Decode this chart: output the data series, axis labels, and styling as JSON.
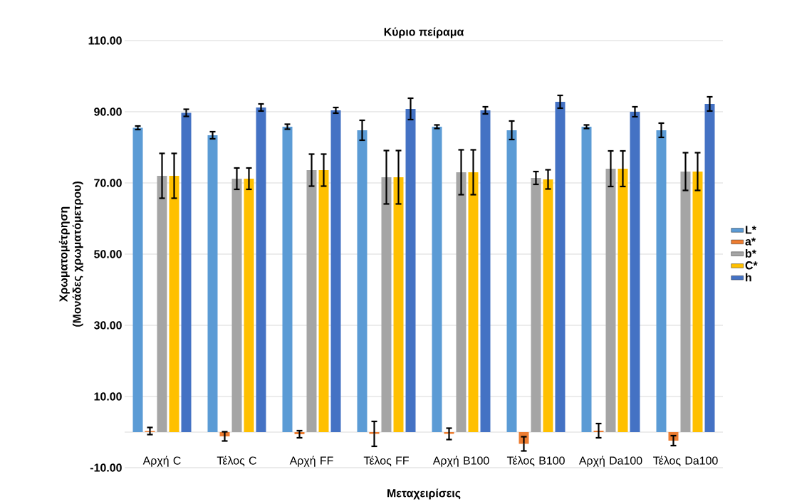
{
  "chart_data": {
    "type": "bar",
    "title": "Κύριο πείραμα",
    "xlabel": "Μεταχειρίσεις",
    "ylabel": "Χρωματομέτρηση (Μονάδες χρωματόμετρου)",
    "categories": [
      "Αρχή C",
      "Τέλος C",
      "Αρχή FF",
      "Τέλος FF",
      "Αρχή B100",
      "Τέλος B100",
      "Αρχή Da100",
      "Τέλος Da100"
    ],
    "series": [
      {
        "name": "L*",
        "color": "#5b9bd5",
        "values": [
          85.5,
          83.4,
          85.8,
          84.8,
          85.8,
          84.8,
          85.8,
          84.8
        ],
        "errors": [
          0.5,
          1,
          0.7,
          2.8,
          0.5,
          2.6,
          0.5,
          2
        ]
      },
      {
        "name": "a*",
        "color": "#ed7d31",
        "values": [
          0.3,
          -1.2,
          -0.6,
          -0.5,
          -0.5,
          -3.3,
          0.4,
          -2.4
        ],
        "errors": [
          1,
          1.3,
          1,
          3.5,
          1.6,
          2,
          2,
          1.4
        ]
      },
      {
        "name": "b*",
        "color": "#a5a5a5",
        "values": [
          72,
          71.2,
          73.6,
          71.6,
          73,
          71.4,
          74,
          73.2
        ],
        "errors": [
          6.3,
          3,
          4.5,
          7.5,
          6.3,
          1.8,
          5,
          5.3
        ]
      },
      {
        "name": "C*",
        "color": "#ffc000",
        "values": [
          72,
          71.2,
          73.6,
          71.6,
          73,
          71,
          74,
          73.2
        ],
        "errors": [
          6.3,
          3,
          4.5,
          7.5,
          6.3,
          2.7,
          5,
          5.3
        ]
      },
      {
        "name": "h",
        "color": "#4472c4",
        "values": [
          89.7,
          91.2,
          90.4,
          90.8,
          90.4,
          92.8,
          90,
          92.2
        ],
        "errors": [
          1,
          1,
          0.8,
          3,
          1,
          1.8,
          1.4,
          2
        ]
      }
    ],
    "ylim": [
      -10,
      110
    ],
    "yticks": [
      {
        "value": -10,
        "label": "-10.00"
      },
      {
        "value": 10,
        "label": "10.00"
      },
      {
        "value": 30,
        "label": "30.00"
      },
      {
        "value": 50,
        "label": "50.00"
      },
      {
        "value": 70,
        "label": "70.00"
      },
      {
        "value": 90,
        "label": "90.00"
      },
      {
        "value": 110,
        "label": "110.00"
      }
    ],
    "grid": "y",
    "legend": "right"
  }
}
